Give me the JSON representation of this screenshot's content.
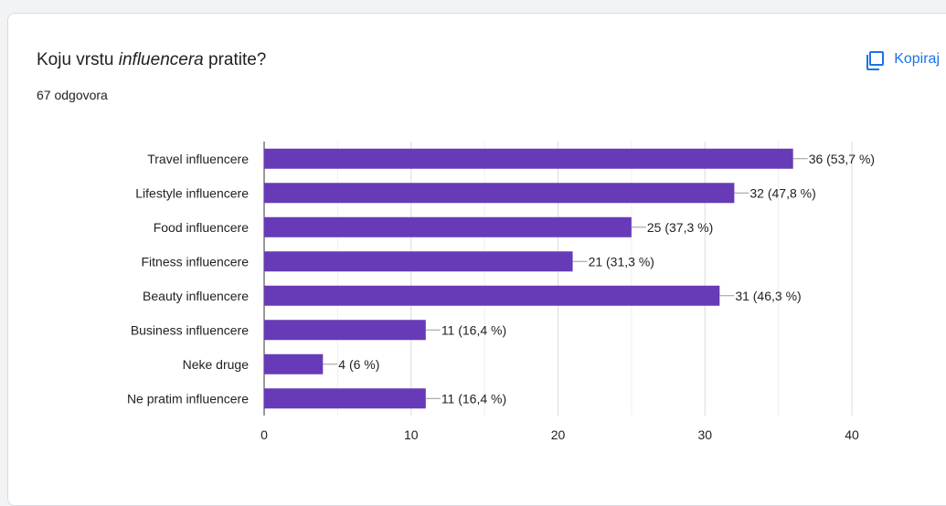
{
  "card": {
    "question_prefix": "Koju vrstu ",
    "question_italic": "influencera",
    "question_suffix": " pratite?",
    "response_count": "67 odgovora",
    "copy_label": "Kopiraj",
    "copy_icon": "copy-icon"
  },
  "colors": {
    "bar": "#673ab7",
    "accent": "#1a73e8",
    "grid": "#e6e6e6",
    "axis": "#333333"
  },
  "chart_data": {
    "type": "bar",
    "orientation": "horizontal",
    "categories": [
      "Travel influencere",
      "Lifestyle influencere",
      "Food influencere",
      "Fitness influencere",
      "Beauty influencere",
      "Business influencere",
      "Neke druge",
      "Ne pratim influencere"
    ],
    "values": [
      36,
      32,
      25,
      21,
      31,
      11,
      4,
      11
    ],
    "value_labels": [
      "36 (53,7 %)",
      "32 (47,8 %)",
      "25 (37,3 %)",
      "21 (31,3 %)",
      "31 (46,3 %)",
      "11 (16,4 %)",
      "4 (6 %)",
      "11 (16,4 %)"
    ],
    "xlim": [
      0,
      40
    ],
    "x_ticks": [
      0,
      10,
      20,
      30,
      40
    ],
    "grid": true
  }
}
